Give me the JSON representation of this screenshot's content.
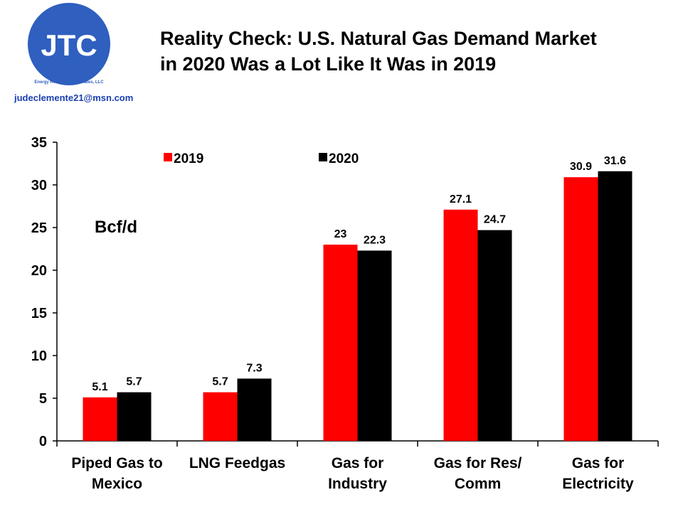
{
  "logo": {
    "initials": "JTC",
    "company": "Energy Research Associates, LLC",
    "email": "judeclemente21@msn.com"
  },
  "chart_data": {
    "type": "bar",
    "title": [
      "Reality Check: U.S. Natural Gas Demand Market",
      "in 2020 Was a Lot Like It Was in 2019"
    ],
    "annotation": "Bcf/d",
    "categories": [
      [
        "Piped Gas to",
        "Mexico"
      ],
      [
        "LNG Feedgas"
      ],
      [
        "Gas for",
        "Industry"
      ],
      [
        "Gas for Res/",
        "Comm"
      ],
      [
        "Gas for",
        "Electricity"
      ]
    ],
    "series": [
      {
        "name": "2019",
        "color": "#ff0000",
        "values": [
          5.1,
          5.7,
          23,
          27.1,
          30.9
        ]
      },
      {
        "name": "2020",
        "color": "#000000",
        "values": [
          5.7,
          7.3,
          22.3,
          24.7,
          31.6
        ]
      }
    ],
    "ylim": [
      0,
      35
    ],
    "yticks": [
      0,
      5,
      10,
      15,
      20,
      25,
      30,
      35
    ],
    "grid": false
  }
}
